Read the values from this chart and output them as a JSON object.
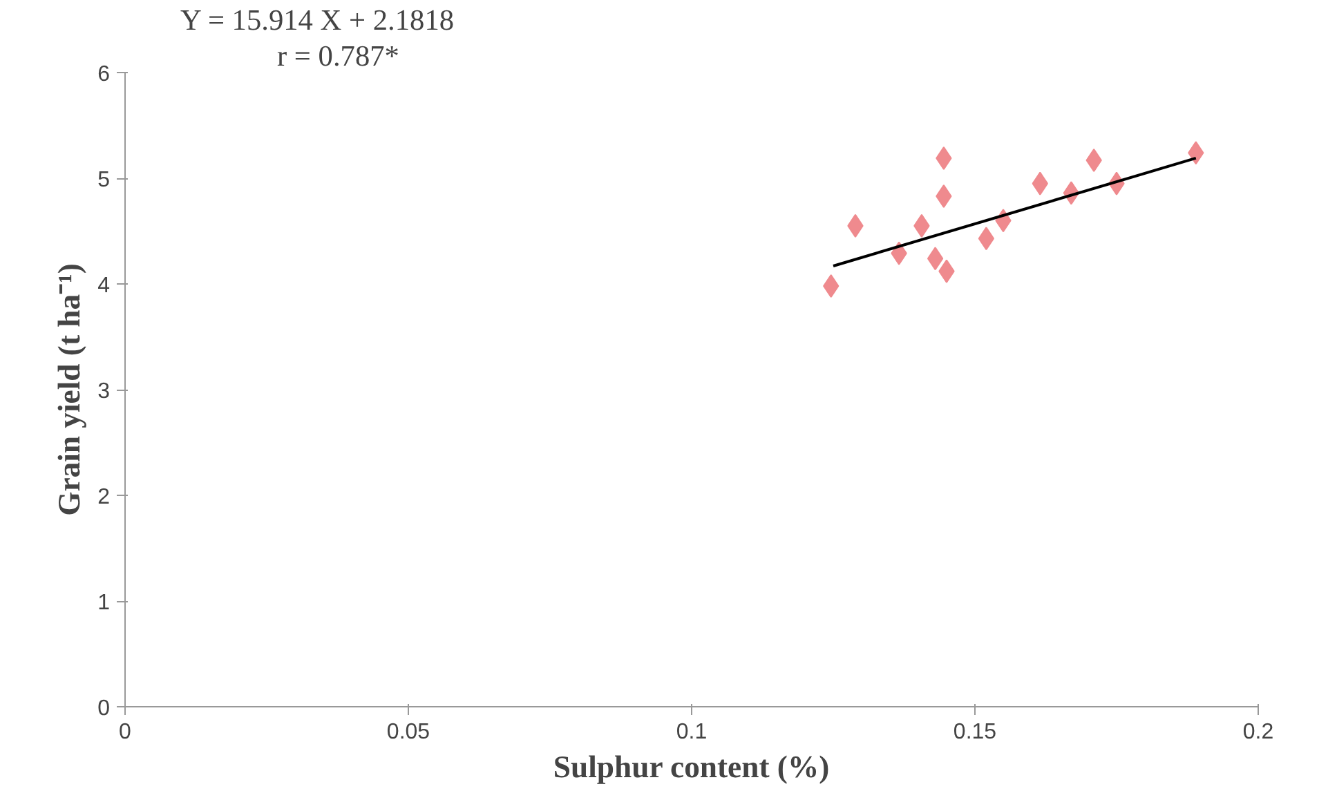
{
  "chart_data": {
    "type": "scatter",
    "xlabel": "Sulphur content (%)",
    "ylabel": "Grain yield (t ha⁻¹)",
    "annotations": [
      "Y = 15.914 X + 2.1818",
      "r = 0.787*"
    ],
    "xlim": [
      0,
      0.2
    ],
    "ylim": [
      0,
      6
    ],
    "xticks": [
      0,
      0.05,
      0.1,
      0.15,
      0.2
    ],
    "yticks": [
      0,
      1,
      2,
      3,
      4,
      5,
      6
    ],
    "marker": "diamond",
    "grid": false,
    "series": [
      {
        "color": "#ef8a8e",
        "x": [
          0.1246,
          0.1289,
          0.1366,
          0.1406,
          0.1445,
          0.1445,
          0.143,
          0.145,
          0.152,
          0.155,
          0.1615,
          0.167,
          0.171,
          0.175,
          0.189
        ],
        "values": [
          3.98,
          4.55,
          4.29,
          4.55,
          5.19,
          4.83,
          4.24,
          4.12,
          4.43,
          4.6,
          4.95,
          4.86,
          5.17,
          4.95,
          5.24
        ]
      },
      {
        "type": "line",
        "color": "#000000",
        "x": [
          0.125,
          0.189
        ],
        "values": [
          4.17,
          5.19
        ],
        "marker": "none"
      }
    ]
  }
}
